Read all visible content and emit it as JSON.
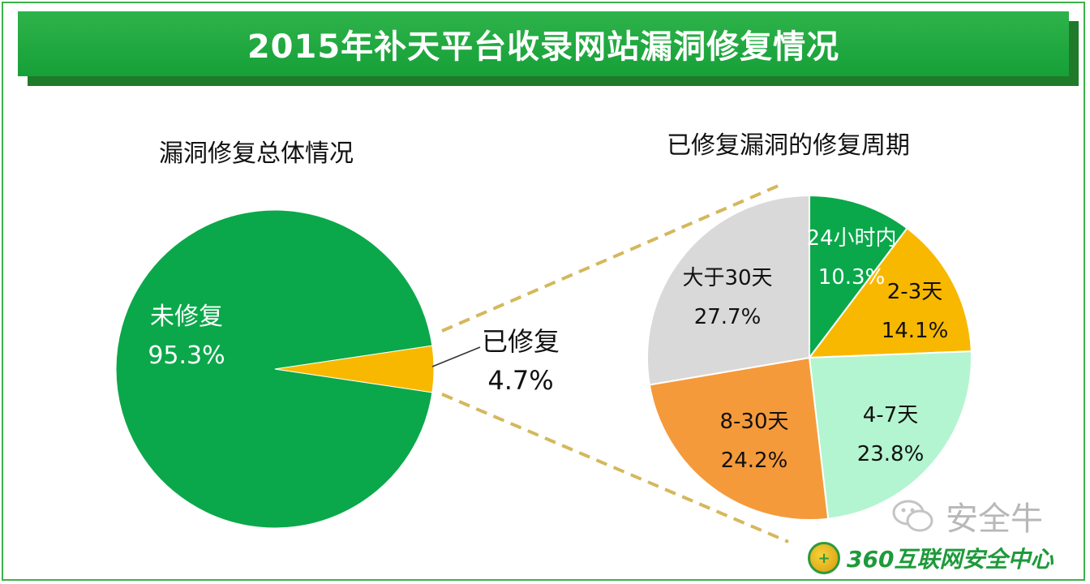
{
  "title": "2015年补天平台收录网站漏洞修复情况",
  "colors": {
    "title_bg": "#16a038",
    "green": "#0aa84a",
    "yellow": "#f8b800",
    "light_green": "#b3f5d0",
    "orange": "#f59a3a",
    "gray": "#d9d9d9",
    "connector": "#d4b85c"
  },
  "chart_data": [
    {
      "type": "pie",
      "title": "漏洞修复总体情况",
      "slices": [
        {
          "label": "未修复",
          "value": 95.3,
          "text": "95.3%",
          "color": "#0aa84a"
        },
        {
          "label": "已修复",
          "value": 4.7,
          "text": "4.7%",
          "color": "#f8b800"
        }
      ]
    },
    {
      "type": "pie",
      "title": "已修复漏洞的修复周期",
      "slices": [
        {
          "label": "24小时内",
          "value": 10.3,
          "text": "10.3%",
          "color": "#0aa84a"
        },
        {
          "label": "2-3天",
          "value": 14.1,
          "text": "14.1%",
          "color": "#f8b800"
        },
        {
          "label": "4-7天",
          "value": 23.8,
          "text": "23.8%",
          "color": "#b3f5d0"
        },
        {
          "label": "8-30天",
          "value": 24.2,
          "text": "24.2%",
          "color": "#f59a3a"
        },
        {
          "label": "大于30天",
          "value": 27.7,
          "text": "27.7%",
          "color": "#d9d9d9"
        }
      ]
    }
  ],
  "watermark": {
    "text": "安全牛",
    "icon": "wechat-icon"
  },
  "logo": {
    "text": "360互联网安全中心",
    "icon": "360-badge-icon"
  }
}
